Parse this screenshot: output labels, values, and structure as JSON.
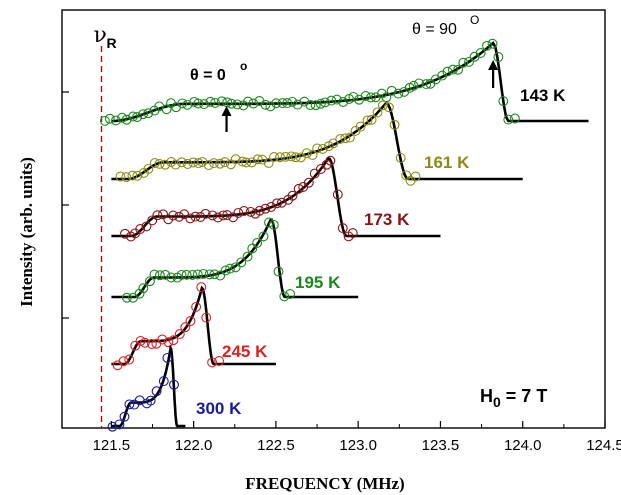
{
  "chart_data": {
    "type": "line",
    "xlabel": "FREQUENCY (MHz)",
    "ylabel": "Intensity (arb. units)",
    "xlim": [
      121.2,
      124.5
    ],
    "x_ticks": [
      "121.5",
      "122.0",
      "122.5",
      "123.0",
      "123.5",
      "124.0",
      "124.5"
    ],
    "x_tick_values": [
      121.5,
      122.0,
      122.5,
      123.0,
      123.5,
      124.0,
      124.5
    ],
    "grid": false,
    "reference_line": {
      "label": "ν",
      "subscript": "R",
      "x": 121.44,
      "color": "#a01010"
    },
    "annotations": {
      "theta0": {
        "prefix": "θ = 0",
        "sup": "o",
        "x": 122.2
      },
      "theta90": {
        "prefix": "θ = 90",
        "sup": "O",
        "x": 123.82
      },
      "field": {
        "main": "H",
        "sub": "0",
        "rest": " = 7 T"
      }
    },
    "series": [
      {
        "name": "143 K",
        "color": "#1a8a1a",
        "baseline": 121.5,
        "step": 121.5,
        "shoulder": 121.95,
        "peak": 123.82,
        "end": 124.4,
        "step_height": 0.22,
        "peak_height": 1.0,
        "rel_height": 0.52
      },
      {
        "name": "161 K",
        "color": "#8c8c14",
        "baseline": 121.5,
        "step": 121.6,
        "shoulder": 121.82,
        "peak": 123.17,
        "end": 124.0,
        "step_height": 0.22,
        "peak_height": 1.0,
        "rel_height": 0.55
      },
      {
        "name": "173 K",
        "color": "#8b1414",
        "baseline": 121.5,
        "step": 121.62,
        "shoulder": 121.78,
        "peak": 122.82,
        "end": 123.5,
        "step_height": 0.25,
        "peak_height": 1.0,
        "rel_height": 0.55
      },
      {
        "name": "195 K",
        "color": "#1a8a1a",
        "baseline": 121.5,
        "step": 121.64,
        "shoulder": 121.76,
        "peak": 122.47,
        "end": 123.0,
        "step_height": 0.25,
        "peak_height": 1.0,
        "rel_height": 0.55
      },
      {
        "name": "245 K",
        "color": "#e02020",
        "baseline": 121.5,
        "step": 121.58,
        "shoulder": 121.68,
        "peak": 122.05,
        "end": 122.5,
        "step_height": 0.3,
        "peak_height": 1.0,
        "rel_height": 0.55
      },
      {
        "name": "300 K",
        "color": "#1a1aa0",
        "baseline": 121.5,
        "step": 121.55,
        "shoulder": 121.62,
        "peak": 121.86,
        "end": 121.95,
        "step_height": 0.3,
        "peak_height": 1.0,
        "rel_height": 0.55
      }
    ]
  }
}
